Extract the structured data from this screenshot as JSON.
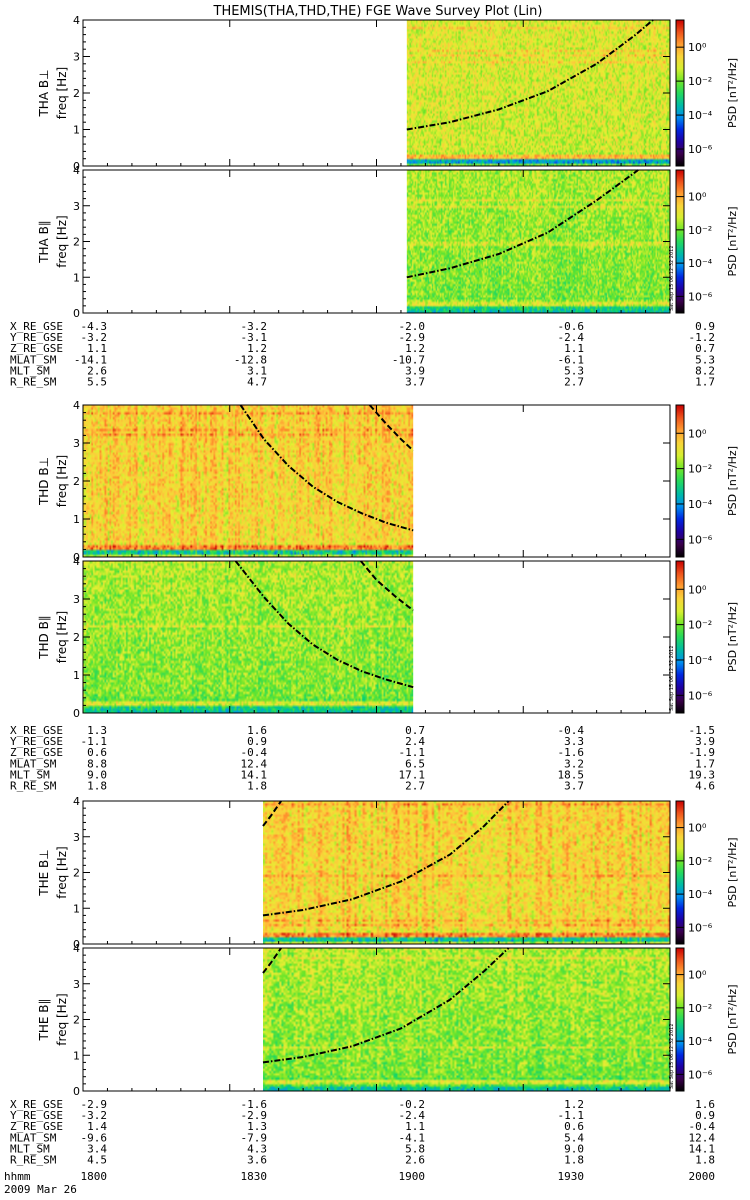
{
  "title": "THEMIS(THA,THD,THE) FGE Wave Survey Plot (Lin)",
  "colorbar": {
    "label": "PSD [nT²/Hz]",
    "tick_labels": [
      "10⁰",
      "10⁻²",
      "10⁻⁴",
      "10⁻⁶"
    ],
    "log_range": [
      -7,
      1.6
    ]
  },
  "stamp": "Sat Sep 15 06:12:32 2012",
  "time_axis": {
    "unit_label": "hhmm",
    "date_label": "2009 Mar 26",
    "range_min": [
      0,
      120
    ],
    "tick_labels": [
      "1800",
      "1830",
      "1900",
      "1930",
      "2000"
    ]
  },
  "chart_data": [
    {
      "type": "heatmap",
      "title": "THA B⊥",
      "ylabel": "freq [Hz]",
      "ylim": [
        0,
        4
      ],
      "yticks": [
        "0",
        "1",
        "2",
        "3",
        "4"
      ],
      "data_span_min": [
        66.2,
        120
      ],
      "gyro_curves": [
        {
          "style": "dashdot",
          "x_min": [
            66.2,
            75,
            85,
            95,
            105,
            113,
            116.5
          ],
          "f_hz": [
            1.0,
            1.2,
            1.55,
            2.05,
            2.8,
            3.6,
            4.0
          ]
        }
      ]
    },
    {
      "type": "heatmap",
      "title": "THA B∥",
      "ylabel": "freq [Hz]",
      "ylim": [
        0,
        4
      ],
      "yticks": [
        "0",
        "1",
        "2",
        "3",
        "4"
      ],
      "data_span_min": [
        66.2,
        120
      ],
      "gyro_curves": [
        {
          "style": "dashdot",
          "x_min": [
            66.2,
            75,
            85,
            95,
            105,
            110,
            113.5
          ],
          "f_hz": [
            1.0,
            1.25,
            1.65,
            2.25,
            3.15,
            3.65,
            4.0
          ]
        }
      ]
    },
    {
      "type": "heatmap",
      "title": "THD B⊥",
      "ylabel": "freq [Hz]",
      "ylim": [
        0,
        4
      ],
      "yticks": [
        "0",
        "1",
        "2",
        "3",
        "4"
      ],
      "data_span_min": [
        0,
        67.5
      ],
      "gyro_curves": [
        {
          "style": "dashdot",
          "x_min": [
            32.2,
            37,
            42,
            47,
            52,
            57,
            62,
            67.5
          ],
          "f_hz": [
            4.0,
            3.1,
            2.4,
            1.85,
            1.45,
            1.15,
            0.9,
            0.7
          ]
        },
        {
          "style": "dashed",
          "x_min": [
            58.6,
            62,
            65,
            67.5
          ],
          "f_hz": [
            4.0,
            3.5,
            3.1,
            2.8
          ]
        }
      ]
    },
    {
      "type": "heatmap",
      "title": "THD B∥",
      "ylabel": "freq [Hz]",
      "ylim": [
        0,
        4
      ],
      "yticks": [
        "0",
        "1",
        "2",
        "3",
        "4"
      ],
      "data_span_min": [
        0,
        67.5
      ],
      "gyro_curves": [
        {
          "style": "dashdot",
          "x_min": [
            31.2,
            37,
            42,
            47,
            52,
            57,
            62,
            67.5
          ],
          "f_hz": [
            4.0,
            3.05,
            2.35,
            1.8,
            1.4,
            1.1,
            0.88,
            0.68
          ]
        },
        {
          "style": "dashed",
          "x_min": [
            56.8,
            60,
            64,
            67.5
          ],
          "f_hz": [
            4.0,
            3.5,
            3.05,
            2.7
          ]
        }
      ]
    },
    {
      "type": "heatmap",
      "title": "THE B⊥",
      "ylabel": "freq [Hz]",
      "ylim": [
        0,
        4
      ],
      "yticks": [
        "0",
        "1",
        "2",
        "3",
        "4"
      ],
      "data_span_min": [
        36.8,
        120
      ],
      "gyro_curves": [
        {
          "style": "dashdot",
          "x_min": [
            36.8,
            45,
            55,
            65,
            75,
            82,
            87
          ],
          "f_hz": [
            0.8,
            0.95,
            1.25,
            1.75,
            2.5,
            3.3,
            4.0
          ]
        },
        {
          "style": "dashed",
          "x_min": [
            36.8,
            38.5,
            40.5
          ],
          "f_hz": [
            3.3,
            3.6,
            4.0
          ]
        }
      ]
    },
    {
      "type": "heatmap",
      "title": "THE B∥",
      "ylabel": "freq [Hz]",
      "ylim": [
        0,
        4
      ],
      "yticks": [
        "0",
        "1",
        "2",
        "3",
        "4"
      ],
      "data_span_min": [
        36.8,
        120
      ],
      "gyro_curves": [
        {
          "style": "dashdot",
          "x_min": [
            36.8,
            45,
            55,
            65,
            75,
            82,
            87
          ],
          "f_hz": [
            0.8,
            0.95,
            1.25,
            1.75,
            2.55,
            3.35,
            4.0
          ]
        },
        {
          "style": "dashed",
          "x_min": [
            36.8,
            38.5,
            40.5
          ],
          "f_hz": [
            3.3,
            3.6,
            4.0
          ]
        }
      ]
    }
  ],
  "orbit_tables": [
    {
      "rows": [
        {
          "label": "X_RE_GSE",
          "values": [
            "-4.3",
            "-3.2",
            "-2.0",
            "-0.6",
            "0.9"
          ]
        },
        {
          "label": "Y_RE_GSE",
          "values": [
            "-3.2",
            "-3.1",
            "-2.9",
            "-2.4",
            "-1.2"
          ]
        },
        {
          "label": "Z_RE_GSE",
          "values": [
            "1.1",
            "1.2",
            "1.2",
            "1.1",
            "0.7"
          ]
        },
        {
          "label": "MLAT_SM",
          "values": [
            "-14.1",
            "-12.8",
            "-10.7",
            "-6.1",
            "5.3"
          ]
        },
        {
          "label": "MLT_SM",
          "values": [
            "2.6",
            "3.1",
            "3.9",
            "5.3",
            "8.2"
          ]
        },
        {
          "label": "R_RE_SM",
          "values": [
            "5.5",
            "4.7",
            "3.7",
            "2.7",
            "1.7"
          ]
        }
      ]
    },
    {
      "rows": [
        {
          "label": "X_RE_GSE",
          "values": [
            "1.3",
            "1.6",
            "0.7",
            "-0.4",
            "-1.5"
          ]
        },
        {
          "label": "Y_RE_GSE",
          "values": [
            "-1.1",
            "0.9",
            "2.4",
            "3.3",
            "3.9"
          ]
        },
        {
          "label": "Z_RE_GSE",
          "values": [
            "0.6",
            "-0.4",
            "-1.1",
            "-1.6",
            "-1.9"
          ]
        },
        {
          "label": "MLAT_SM",
          "values": [
            "8.8",
            "12.4",
            "6.5",
            "3.2",
            "1.7"
          ]
        },
        {
          "label": "MLT_SM",
          "values": [
            "9.0",
            "14.1",
            "17.1",
            "18.5",
            "19.3"
          ]
        },
        {
          "label": "R_RE_SM",
          "values": [
            "1.8",
            "1.8",
            "2.7",
            "3.7",
            "4.6"
          ]
        }
      ]
    },
    {
      "rows": [
        {
          "label": "X_RE_GSE",
          "values": [
            "-2.9",
            "-1.6",
            "-0.2",
            "1.2",
            "1.6"
          ]
        },
        {
          "label": "Y_RE_GSE",
          "values": [
            "-3.2",
            "-2.9",
            "-2.4",
            "-1.1",
            "0.9"
          ]
        },
        {
          "label": "Z_RE_GSE",
          "values": [
            "1.4",
            "1.3",
            "1.1",
            "0.6",
            "-0.4"
          ]
        },
        {
          "label": "MLAT_SM",
          "values": [
            "-9.6",
            "-7.9",
            "-4.1",
            "5.4",
            "12.4"
          ]
        },
        {
          "label": "MLT_SM",
          "values": [
            "3.4",
            "4.3",
            "5.8",
            "9.0",
            "14.1"
          ]
        },
        {
          "label": "R_RE_SM",
          "values": [
            "4.5",
            "3.6",
            "2.6",
            "1.8",
            "1.8"
          ]
        }
      ]
    }
  ]
}
